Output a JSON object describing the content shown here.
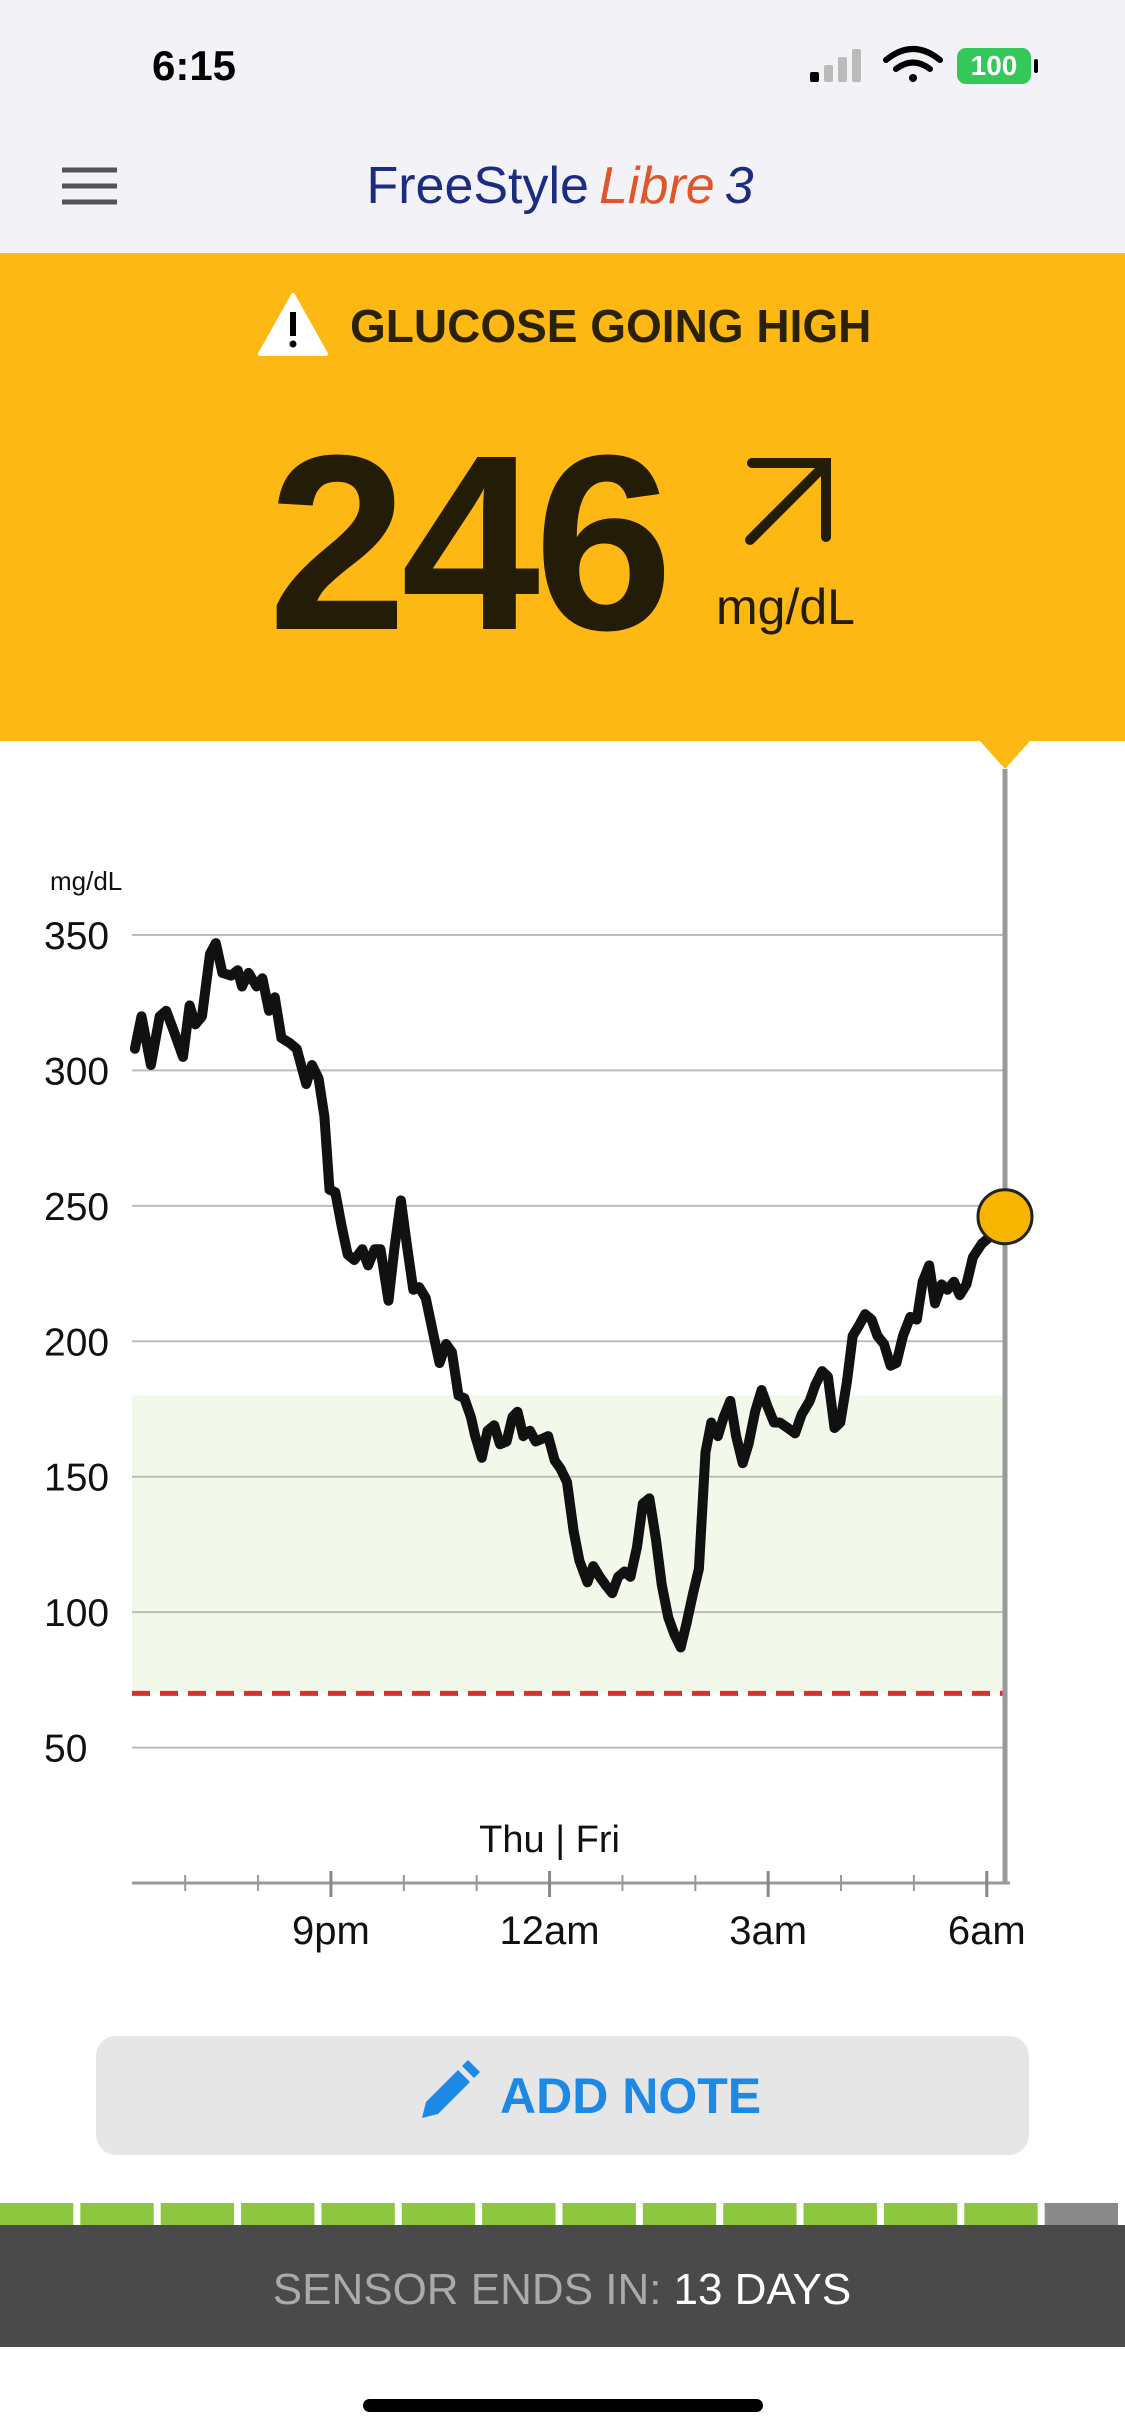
{
  "status_bar": {
    "time": "6:15",
    "battery": "100"
  },
  "header": {
    "logo": [
      "FreeStyle",
      "Libre",
      "3"
    ]
  },
  "alert": {
    "title": "GLUCOSE GOING HIGH",
    "value": 246,
    "unit": "mg/dL"
  },
  "chart_data": {
    "type": "line",
    "y_label": "mg/dL",
    "day_label": "Thu | Fri",
    "color": "#111111",
    "x": [
      18.31,
      18.4,
      18.53,
      18.65,
      18.74,
      18.85,
      18.97,
      19.06,
      19.14,
      19.23,
      19.34,
      19.42,
      19.51,
      19.63,
      19.72,
      19.78,
      19.87,
      19.98,
      20.06,
      20.15,
      20.23,
      20.32,
      20.44,
      20.53,
      20.66,
      20.74,
      20.83,
      20.91,
      20.98,
      21.06,
      21.15,
      21.23,
      21.32,
      21.43,
      21.51,
      21.6,
      21.68,
      21.79,
      21.87,
      21.96,
      22.04,
      22.13,
      22.21,
      22.3,
      22.41,
      22.49,
      22.58,
      22.66,
      22.75,
      22.83,
      22.92,
      22.98,
      23.07,
      23.15,
      23.24,
      23.32,
      23.41,
      23.49,
      23.56,
      23.64,
      23.73,
      23.81,
      23.9,
      23.98,
      24.07,
      24.15,
      24.24,
      24.33,
      24.41,
      24.52,
      24.6,
      24.69,
      24.77,
      24.86,
      24.94,
      25.03,
      25.11,
      25.2,
      25.28,
      25.37,
      25.46,
      25.54,
      25.63,
      25.71,
      25.8,
      25.88,
      25.97,
      26.05,
      26.14,
      26.22,
      26.31,
      26.39,
      26.48,
      26.56,
      26.65,
      26.73,
      26.82,
      26.91,
      26.99,
      27.08,
      27.16,
      27.27,
      27.37,
      27.46,
      27.57,
      27.65,
      27.74,
      27.82,
      27.91,
      27.99,
      28.08,
      28.16,
      28.25,
      28.33,
      28.42,
      28.5,
      28.59,
      28.68,
      28.76,
      28.85,
      28.95,
      29.04,
      29.12,
      29.21,
      29.29,
      29.38,
      29.46,
      29.55,
      29.63,
      29.72,
      29.81,
      29.93,
      30.06,
      30.25
    ],
    "values": [
      308,
      320,
      302,
      320,
      322,
      314,
      305,
      324,
      317,
      320,
      343,
      347,
      336,
      335,
      337,
      331,
      336,
      331,
      334,
      322,
      327,
      312,
      310,
      308,
      295,
      302,
      297,
      283,
      256,
      255,
      242,
      232,
      230,
      234,
      228,
      234,
      234,
      215,
      234,
      252,
      236,
      219,
      220,
      216,
      202,
      192,
      199,
      196,
      180,
      179,
      172,
      165,
      157,
      167,
      169,
      162,
      163,
      172,
      174,
      165,
      167,
      163,
      164,
      165,
      156,
      153,
      148,
      130,
      119,
      111,
      117,
      113,
      110,
      107,
      113,
      115,
      113,
      124,
      140,
      142,
      127,
      110,
      98,
      92,
      87,
      96,
      107,
      116,
      159,
      170,
      165,
      172,
      178,
      165,
      155,
      162,
      174,
      182,
      176,
      170,
      170,
      168,
      166,
      173,
      178,
      184,
      189,
      187,
      168,
      170,
      185,
      202,
      206,
      210,
      208,
      202,
      199,
      191,
      192,
      202,
      209,
      208,
      222,
      228,
      214,
      221,
      219,
      222,
      217,
      221,
      231,
      236,
      239,
      246
    ],
    "xlim": [
      18.27,
      30.25
    ],
    "xticks": [
      {
        "value": 21,
        "label": "9pm"
      },
      {
        "value": 24,
        "label": "12am"
      },
      {
        "value": 27,
        "label": "3am"
      },
      {
        "value": 30,
        "label": "6am"
      }
    ],
    "xminor": [
      19,
      20,
      22,
      23,
      25,
      26,
      28,
      29
    ],
    "ylim": [
      0,
      350
    ],
    "yticks": [
      50,
      100,
      150,
      200,
      250,
      300,
      350
    ],
    "grid": true,
    "target_range": [
      70,
      180
    ],
    "target_color": "#f2f8ea",
    "low_line": 70,
    "low_color": "#d9302c",
    "current_color": "#f7b500"
  },
  "button": {
    "label": "ADD NOTE"
  },
  "sensor": {
    "label": "SENSOR ENDS IN:",
    "value": "13 DAYS",
    "segments_total": 14,
    "segments_remaining": 13
  }
}
